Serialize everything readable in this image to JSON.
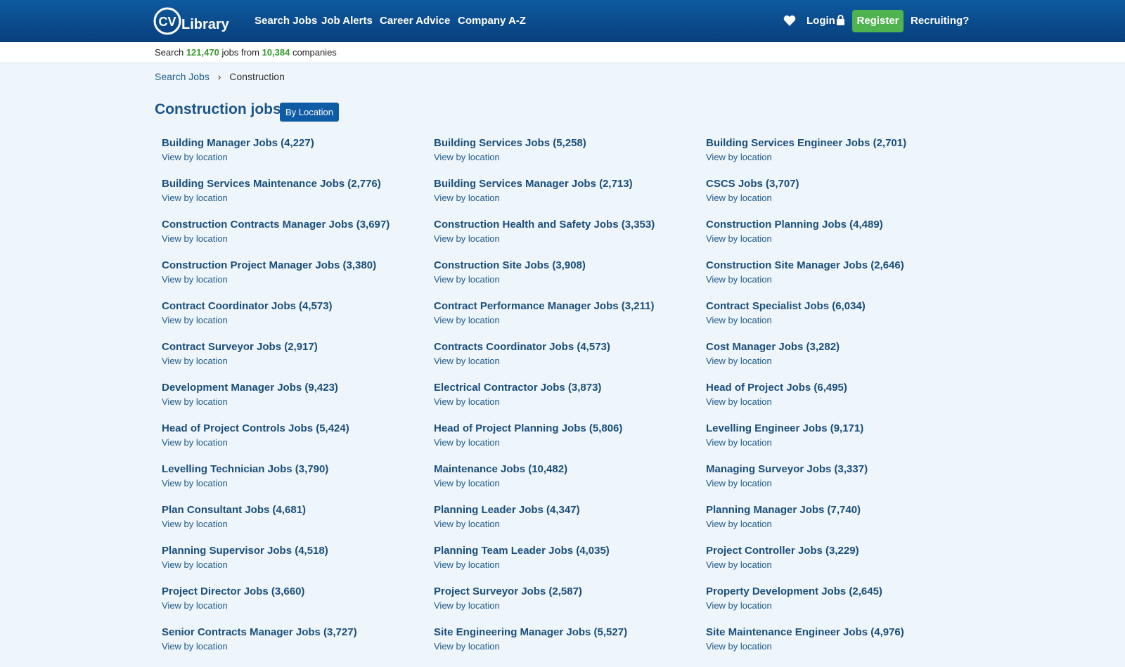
{
  "header": {
    "logo_mark": "CV",
    "logo_text": "Library",
    "nav": [
      "Search Jobs",
      "Job Alerts",
      "Career Advice",
      "Company A-Z"
    ],
    "login": "Login",
    "register": "Register",
    "recruiting": "Recruiting?"
  },
  "stats": {
    "search": "Search",
    "jobs_count": "121,470",
    "jobs_from": "jobs from",
    "companies_count": "10,384",
    "companies": "companies"
  },
  "breadcrumb": [
    "Search Jobs",
    "Construction"
  ],
  "heading": {
    "title": "Construction jobs",
    "button": "By Location"
  },
  "item_link": "View by location",
  "items": [
    "Building Manager Jobs (4,227)",
    "Building Services Jobs (5,258)",
    "Building Services Engineer Jobs (2,701)",
    "Building Services Maintenance Jobs (2,776)",
    "Building Services Manager Jobs (2,713)",
    "CSCS Jobs (3,707)",
    "Construction Contracts Manager Jobs (3,697)",
    "Construction Health and Safety Jobs (3,353)",
    "Construction Planning Jobs (4,489)",
    "Construction Project Manager Jobs (3,380)",
    "Construction Site Jobs (3,908)",
    "Construction Site Manager Jobs (2,646)",
    "Contract Coordinator Jobs (4,573)",
    "Contract Performance Manager Jobs (3,211)",
    "Contract Specialist Jobs (6,034)",
    "Contract Surveyor Jobs (2,917)",
    "Contracts Coordinator Jobs (4,573)",
    "Cost Manager Jobs (3,282)",
    "Development Manager Jobs (9,423)",
    "Electrical Contractor Jobs (3,873)",
    "Head of Project Jobs (6,495)",
    "Head of Project Controls Jobs (5,424)",
    "Head of Project Planning Jobs (5,806)",
    "Levelling Engineer Jobs (9,171)",
    "Levelling Technician Jobs (3,790)",
    "Maintenance Jobs (10,482)",
    "Managing Surveyor Jobs (3,337)",
    "Plan Consultant Jobs (4,681)",
    "Planning Leader Jobs (4,347)",
    "Planning Manager Jobs (7,740)",
    "Planning Supervisor Jobs (4,518)",
    "Planning Team Leader Jobs (4,035)",
    "Project Controller Jobs (3,229)",
    "Project Director Jobs (3,660)",
    "Project Surveyor Jobs (2,587)",
    "Property Development Jobs (2,645)",
    "Senior Contracts Manager Jobs (3,727)",
    "Site Engineering Manager Jobs (5,527)",
    "Site Maintenance Engineer Jobs (4,976)"
  ]
}
